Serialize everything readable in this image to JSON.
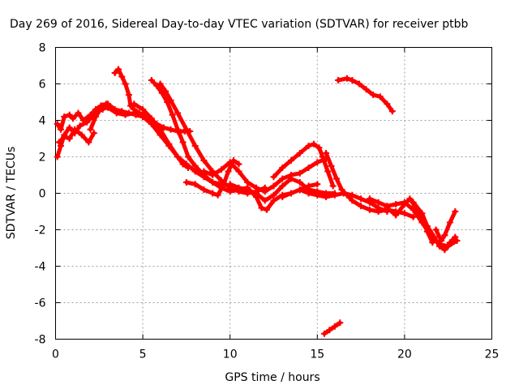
{
  "chart_data": {
    "type": "scatter",
    "title": "Day 269 of 2016, Sidereal Day-to-day VTEC variation (SDTVAR) for receiver ptbb",
    "xlabel": "GPS time / hours",
    "ylabel": "SDTVAR / TECUs",
    "xlim": [
      0,
      25
    ],
    "ylim": [
      -8,
      8
    ],
    "xticks": [
      "0",
      "5",
      "10",
      "15",
      "20",
      "25"
    ],
    "yticks": [
      "-8",
      "-6",
      "-4",
      "-2",
      "0",
      "2",
      "4",
      "6",
      "8"
    ],
    "grid": true,
    "legend": "none",
    "color": "#ff0000",
    "series": [
      {
        "x": [
          0.1,
          0.3,
          0.5,
          0.8,
          1.0,
          1.3,
          1.6,
          2.0,
          2.3,
          2.6,
          2.9
        ],
        "y": [
          3.8,
          3.5,
          4.2,
          4.3,
          4.1,
          4.4,
          4.0,
          4.3,
          4.6,
          4.8,
          4.9
        ]
      },
      {
        "x": [
          0.1,
          0.3,
          0.5,
          0.8,
          1.1,
          1.4,
          1.8,
          2.1,
          2.4,
          2.7
        ],
        "y": [
          2.0,
          2.6,
          3.2,
          3.6,
          3.3,
          3.7,
          3.9,
          4.2,
          4.5,
          4.6
        ]
      },
      {
        "x": [
          0.2,
          0.5,
          0.8,
          1.1,
          1.5,
          1.9,
          2.2
        ],
        "y": [
          2.8,
          3.1,
          3.0,
          3.5,
          3.2,
          2.8,
          3.3
        ]
      },
      {
        "x": [
          2.0,
          2.3,
          2.7,
          3.0,
          3.4,
          3.8,
          4.2,
          4.6,
          5.0,
          5.4,
          5.8,
          6.2,
          6.6,
          7.0,
          7.4,
          7.7
        ],
        "y": [
          3.5,
          4.2,
          4.8,
          4.9,
          4.6,
          4.5,
          4.4,
          4.3,
          4.2,
          4.0,
          3.8,
          3.6,
          3.5,
          3.4,
          3.4,
          3.4
        ]
      },
      {
        "x": [
          3.4,
          3.6,
          3.8,
          4.0,
          4.2,
          4.3,
          4.5,
          4.8,
          5.1
        ],
        "y": [
          6.6,
          6.8,
          6.4,
          6.0,
          5.4,
          4.8,
          4.6,
          4.4,
          4.3
        ]
      },
      {
        "x": [
          2.5,
          3.0,
          3.5,
          4.0,
          4.5,
          5.0,
          5.5,
          6.0,
          6.5,
          7.0,
          7.5,
          8.0,
          8.5,
          9.0,
          9.5,
          10.0
        ],
        "y": [
          4.6,
          4.7,
          4.4,
          4.3,
          4.4,
          4.2,
          3.8,
          3.2,
          2.6,
          2.0,
          1.6,
          1.2,
          0.9,
          0.6,
          0.5,
          0.4
        ]
      },
      {
        "x": [
          4.5,
          5.0,
          5.5,
          6.0,
          6.5,
          7.0,
          7.3,
          7.6
        ],
        "y": [
          4.9,
          4.6,
          4.1,
          3.5,
          2.7,
          2.0,
          1.6,
          1.4
        ]
      },
      {
        "x": [
          5.5,
          5.8,
          6.1,
          6.4,
          6.7,
          7.0,
          7.3,
          7.6,
          8.0,
          8.5,
          9.0,
          9.5,
          10.0,
          10.5,
          11.0
        ],
        "y": [
          6.2,
          5.9,
          5.5,
          5.0,
          4.3,
          3.5,
          2.8,
          2.0,
          1.5,
          1.0,
          0.6,
          0.3,
          0.1,
          0.2,
          0.3
        ]
      },
      {
        "x": [
          6.0,
          6.3,
          6.6,
          7.0,
          7.5,
          8.0,
          8.5,
          9.0,
          9.5,
          10.0,
          10.5,
          11.0,
          11.5,
          12.0
        ],
        "y": [
          6.0,
          5.6,
          5.1,
          4.4,
          3.5,
          2.6,
          1.8,
          1.2,
          0.7,
          0.3,
          0.1,
          0.0,
          0.1,
          0.3
        ]
      },
      {
        "x": [
          7.5,
          8.0,
          8.5,
          9.0,
          9.3,
          9.6,
          9.9,
          10.2,
          10.5
        ],
        "y": [
          0.6,
          0.5,
          0.2,
          0.0,
          -0.1,
          0.4,
          1.2,
          1.8,
          1.6
        ]
      },
      {
        "x": [
          8.5,
          9.0,
          9.5,
          10.0,
          10.5,
          11.0,
          11.5,
          12.0,
          12.5,
          13.0,
          13.5,
          14.0,
          14.5,
          15.0,
          15.5
        ],
        "y": [
          1.2,
          1.0,
          1.3,
          1.7,
          1.2,
          0.6,
          0.3,
          0.1,
          0.4,
          0.8,
          1.0,
          1.1,
          1.4,
          1.7,
          1.9
        ]
      },
      {
        "x": [
          10.0,
          10.5,
          11.0,
          11.5,
          12.0,
          12.5,
          13.0,
          13.5,
          14.0,
          14.5,
          15.0,
          15.5,
          16.0
        ],
        "y": [
          0.5,
          0.3,
          0.2,
          0.0,
          -0.4,
          -0.1,
          0.4,
          0.8,
          0.6,
          0.2,
          0.1,
          0.0,
          0.0
        ]
      },
      {
        "x": [
          11.0,
          11.5,
          11.8,
          12.1,
          12.5,
          13.0,
          13.5,
          14.0,
          14.5,
          15.0
        ],
        "y": [
          0.3,
          -0.2,
          -0.8,
          -0.9,
          -0.4,
          -0.1,
          0.0,
          0.2,
          0.4,
          0.5
        ]
      },
      {
        "x": [
          12.5,
          13.0,
          13.5,
          14.0,
          14.5,
          14.8,
          15.1,
          15.3,
          15.6,
          15.9
        ],
        "y": [
          0.9,
          1.4,
          1.8,
          2.2,
          2.6,
          2.7,
          2.5,
          2.0,
          1.2,
          0.4
        ]
      },
      {
        "x": [
          13.0,
          13.5,
          14.0,
          14.5,
          15.0,
          15.5,
          16.0,
          16.5,
          17.0,
          17.5,
          18.0,
          18.5,
          19.0
        ],
        "y": [
          -0.2,
          0.0,
          0.2,
          0.0,
          -0.1,
          -0.2,
          -0.1,
          0.0,
          -0.1,
          -0.3,
          -0.5,
          -0.8,
          -1.0
        ]
      },
      {
        "x": [
          15.5,
          15.8,
          16.1,
          16.4,
          16.7,
          17.0,
          17.5,
          18.0,
          18.5,
          19.0,
          19.5,
          20.0,
          20.5
        ],
        "y": [
          2.2,
          1.5,
          0.8,
          0.2,
          -0.1,
          -0.4,
          -0.7,
          -0.9,
          -1.0,
          -0.9,
          -1.0,
          -1.1,
          -1.3
        ]
      },
      {
        "x": [
          16.2,
          16.7,
          17.0,
          17.4,
          17.8,
          18.2,
          18.6,
          19.0,
          19.3
        ],
        "y": [
          6.2,
          6.3,
          6.2,
          6.0,
          5.7,
          5.4,
          5.3,
          4.9,
          4.5
        ]
      },
      {
        "x": [
          15.4,
          15.7,
          16.0,
          16.3
        ],
        "y": [
          -7.7,
          -7.5,
          -7.3,
          -7.1
        ]
      },
      {
        "x": [
          18.0,
          18.5,
          19.0,
          19.5,
          20.0,
          20.5,
          21.0,
          21.5,
          22.0,
          22.5,
          23.0
        ],
        "y": [
          -0.3,
          -0.5,
          -0.7,
          -0.6,
          -0.5,
          -0.9,
          -1.6,
          -2.3,
          -2.8,
          -2.9,
          -2.6
        ]
      },
      {
        "x": [
          19.0,
          19.5,
          20.0,
          20.3,
          20.6,
          21.0,
          21.3,
          21.6
        ],
        "y": [
          -0.8,
          -1.2,
          -0.6,
          -0.3,
          -0.7,
          -1.4,
          -2.1,
          -2.7
        ]
      },
      {
        "x": [
          20.5,
          21.0,
          21.3,
          21.7,
          22.0,
          22.3,
          22.6,
          22.9
        ],
        "y": [
          -0.5,
          -1.1,
          -1.8,
          -2.4,
          -2.9,
          -3.1,
          -2.7,
          -2.4
        ]
      },
      {
        "x": [
          21.8,
          22.1,
          22.3,
          22.6,
          22.9
        ],
        "y": [
          -2.0,
          -2.6,
          -2.3,
          -1.6,
          -1.0
        ]
      }
    ]
  }
}
